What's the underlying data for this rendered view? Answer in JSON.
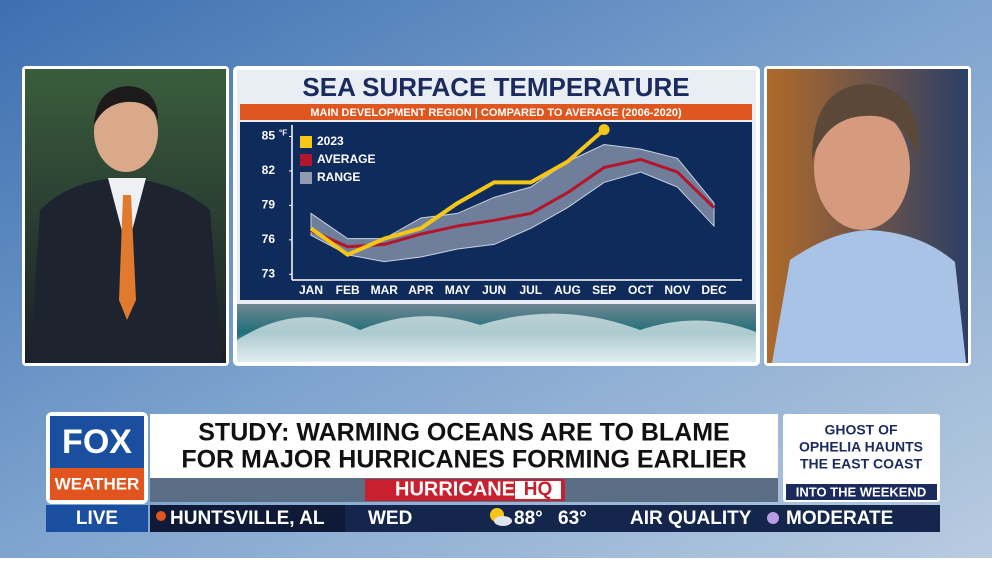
{
  "chart_data": {
    "type": "line",
    "title": "SEA SURFACE TEMPERATURE",
    "subtitle": "MAIN DEVELOPMENT REGION | COMPARED TO AVERAGE (2006-2020)",
    "y_unit": "°F",
    "categories": [
      "JAN",
      "FEB",
      "MAR",
      "APR",
      "MAY",
      "JUN",
      "JUL",
      "AUG",
      "SEP",
      "OCT",
      "NOV",
      "DEC"
    ],
    "ylim": [
      72.5,
      86
    ],
    "yticks": [
      73,
      76,
      79,
      82,
      85
    ],
    "legend": "upper left",
    "series": [
      {
        "name": "2023",
        "color": "#f5c518",
        "values": [
          77.0,
          74.7,
          76.1,
          77.0,
          79.2,
          81.0,
          81.0,
          82.8,
          85.6,
          null,
          null,
          null
        ]
      },
      {
        "name": "AVERAGE",
        "color": "#b3152c",
        "values": [
          76.8,
          75.4,
          75.6,
          76.5,
          77.2,
          77.7,
          78.3,
          80.1,
          82.3,
          83.0,
          81.9,
          78.8
        ]
      },
      {
        "name": "RANGE",
        "color": "#8f9bb0",
        "low": [
          76.4,
          74.7,
          74.1,
          74.5,
          75.2,
          75.6,
          77.0,
          78.8,
          81.0,
          81.9,
          80.6,
          77.2
        ],
        "high": [
          78.3,
          76.1,
          76.1,
          77.9,
          78.3,
          79.7,
          80.6,
          82.8,
          84.3,
          83.9,
          83.1,
          79.2
        ]
      }
    ]
  },
  "network": {
    "logo_top": "FOX",
    "logo_bottom": "WEATHER",
    "status": "LIVE"
  },
  "headline": {
    "lines": [
      "STUDY: WARMING OCEANS ARE TO BLAME",
      "FOR MAJOR HURRICANES FORMING EARLIER"
    ],
    "show": "HURRICANE",
    "show_badge": "HQ"
  },
  "sidebar": {
    "lines": [
      "GHOST OF",
      "OPHELIA HAUNTS",
      "THE EAST COAST"
    ],
    "footer": "INTO THE WEEKEND"
  },
  "ticker": {
    "location": "HUNTSVILLE, AL",
    "day": "WED",
    "high": "88°",
    "low": "63°",
    "metric": "AIR QUALITY",
    "metric_value": "MODERATE"
  }
}
